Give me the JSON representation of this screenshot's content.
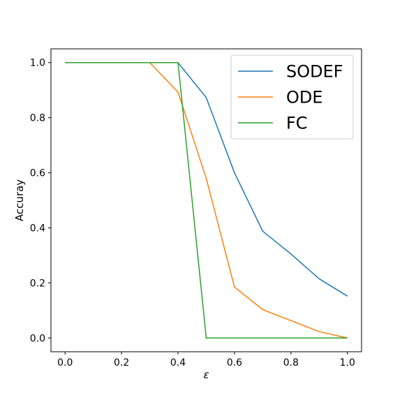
{
  "chart_data": {
    "type": "line",
    "title": "",
    "xlabel": "ε",
    "ylabel": "Accuray",
    "xlim": [
      -0.05,
      1.05
    ],
    "ylim": [
      -0.05,
      1.05
    ],
    "x_ticks": [
      "0.0",
      "0.2",
      "0.4",
      "0.6",
      "0.8",
      "1.0"
    ],
    "y_ticks": [
      "0.0",
      "0.2",
      "0.4",
      "0.6",
      "0.8",
      "1.0"
    ],
    "grid": false,
    "legend_position": "top-right",
    "series": [
      {
        "name": "SODEF",
        "color": "#1f77b4",
        "x": [
          0.0,
          0.1,
          0.2,
          0.3,
          0.4,
          0.5,
          0.6,
          0.7,
          0.8,
          0.9,
          1.0
        ],
        "y": [
          1.0,
          1.0,
          1.0,
          1.0,
          1.0,
          0.873,
          0.6,
          0.388,
          0.305,
          0.215,
          0.152
        ]
      },
      {
        "name": "ODE",
        "color": "#ff7f0e",
        "x": [
          0.0,
          0.1,
          0.2,
          0.3,
          0.4,
          0.5,
          0.6,
          0.7,
          0.8,
          0.9,
          1.0
        ],
        "y": [
          1.0,
          1.0,
          1.0,
          1.0,
          0.893,
          0.58,
          0.185,
          0.103,
          0.063,
          0.023,
          0.0
        ]
      },
      {
        "name": "FC",
        "color": "#2ca02c",
        "x": [
          0.0,
          0.1,
          0.2,
          0.3,
          0.4,
          0.5,
          0.6,
          0.7,
          0.8,
          0.9,
          1.0
        ],
        "y": [
          1.0,
          1.0,
          1.0,
          1.0,
          1.0,
          0.0,
          0.0,
          0.0,
          0.0,
          0.0,
          0.0
        ]
      }
    ]
  }
}
